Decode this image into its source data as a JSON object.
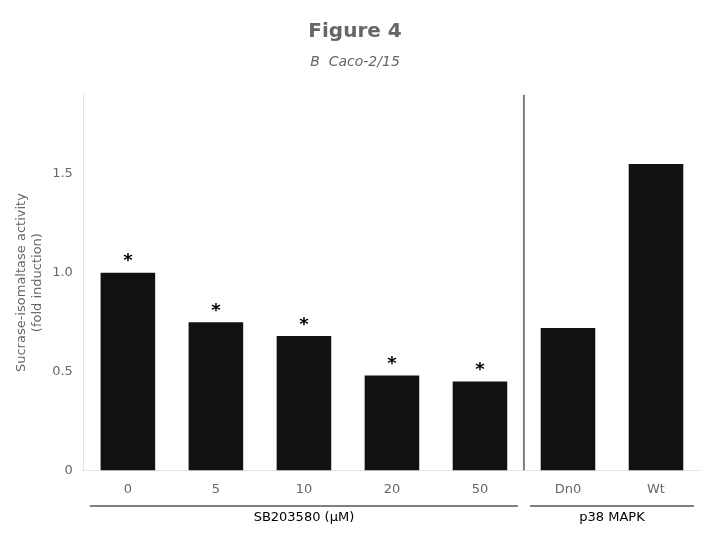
{
  "chart_data": {
    "type": "bar",
    "title": "Figure 4",
    "subtitle": "B  Caco-2/15",
    "categories": [
      "0",
      "5",
      "10",
      "20",
      "50",
      "Dn0",
      "Wt"
    ],
    "values": [
      1.0,
      0.75,
      0.68,
      0.48,
      0.45,
      0.72,
      1.55
    ],
    "color": "#111111",
    "ylabel": "Sucrase-isomaltase activity\n(fold induction)",
    "ylim": [
      0,
      1.9
    ],
    "yticks": [
      0,
      0.5,
      {
        "value": 1.0,
        "label": "1.0"
      },
      1.5
    ],
    "grid": false,
    "annotations": [
      {
        "text": "*",
        "category": "0"
      },
      {
        "text": "*",
        "category": "5"
      },
      {
        "text": "*",
        "category": "10"
      },
      {
        "text": "*",
        "category": "20"
      },
      {
        "text": "*",
        "category": "50"
      },
      {
        "text": "SB203580 (μM)",
        "categories": [
          "0",
          "5",
          "10",
          "20",
          "50"
        ]
      },
      {
        "text": "p38 MAPK",
        "categories": [
          "Dn0",
          "Wt"
        ]
      }
    ]
  }
}
